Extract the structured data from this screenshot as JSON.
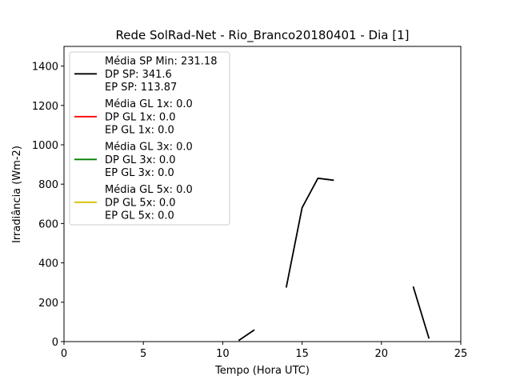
{
  "chart_data": {
    "type": "line",
    "title": "Rede SolRad-Net - Rio_Branco20180401 - Dia [1]",
    "xlabel": "Tempo (Hora UTC)",
    "ylabel": "Irradiância (Wm-2)",
    "xlim": [
      0,
      25
    ],
    "ylim": [
      0,
      1500
    ],
    "x_ticks": [
      0,
      5,
      10,
      15,
      20,
      25
    ],
    "y_ticks": [
      0,
      200,
      400,
      600,
      800,
      1000,
      1200,
      1400
    ],
    "x_tick_labels": [
      "0",
      "5",
      "10",
      "15",
      "20",
      "25"
    ],
    "y_tick_labels": [
      "0",
      "200",
      "400",
      "600",
      "800",
      "1000",
      "1200",
      "1400"
    ],
    "grid": false,
    "legend_position": "top-left",
    "series": [
      {
        "color": "#000000",
        "legend_lines": [
          "Média SP Min: 231.18",
          "DP SP: 341.6",
          "EP SP: 113.87"
        ],
        "segments": [
          [
            [
              11,
              5
            ],
            [
              12,
              60
            ]
          ],
          [
            [
              14,
              275
            ],
            [
              15,
              680
            ],
            [
              16,
              830
            ],
            [
              17,
              820
            ]
          ],
          [
            [
              22,
              280
            ],
            [
              23,
              15
            ]
          ]
        ]
      },
      {
        "color": "#ff0000",
        "legend_lines": [
          "Média GL 1x: 0.0",
          "DP GL 1x: 0.0",
          "EP GL 1x: 0.0"
        ],
        "segments": []
      },
      {
        "color": "#008000",
        "legend_lines": [
          "Média GL 3x: 0.0",
          "DP GL 3x: 0.0",
          "EP GL 3x: 0.0"
        ],
        "segments": []
      },
      {
        "color": "#d4c000",
        "legend_lines": [
          "Média GL 5x: 0.0",
          "DP GL 5x: 0.0",
          "EP GL 5x: 0.0"
        ],
        "segments": []
      }
    ]
  }
}
